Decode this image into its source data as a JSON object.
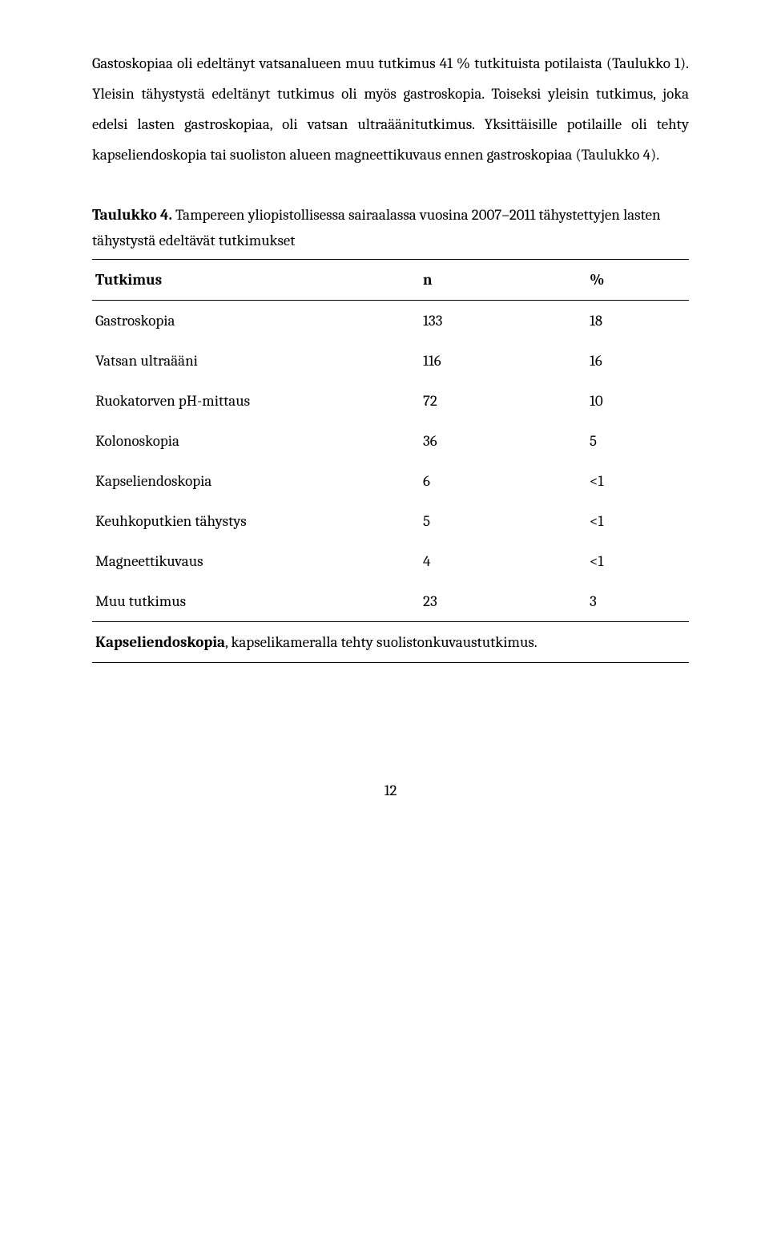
{
  "paragraph": {
    "text": "Gastoskopiaa oli edeltänyt vatsanalueen muu tutkimus 41 % tutkituista potilaista (Taulukko 1). Yleisin tähystystä edeltänyt tutkimus oli myös gastroskopia. Toiseksi yleisin tutkimus, joka edelsi lasten gastroskopiaa, oli vatsan ultraäänitutkimus. Yksittäisille potilaille oli tehty kapseliendoskopia tai suoliston alueen magneettikuvaus ennen gastroskopiaa (Taulukko 4)."
  },
  "table": {
    "caption_lead": "Taulukko 4.",
    "caption_rest": "Tampereen yliopistollisessa sairaalassa vuosina 2007–2011 tähystettyjen lasten tähystystä edeltävät tutkimukset",
    "head": {
      "c1": "Tutkimus",
      "c2": "n",
      "c3": "%"
    },
    "rows": [
      {
        "c1": "Gastroskopia",
        "c2": "133",
        "c3": "18"
      },
      {
        "c1": "Vatsan ultraääni",
        "c2": "116",
        "c3": "16"
      },
      {
        "c1": "Ruokatorven pH-mittaus",
        "c2": "72",
        "c3": "10"
      },
      {
        "c1": "Kolonoskopia",
        "c2": "36",
        "c3": "5"
      },
      {
        "c1": "Kapseliendoskopia",
        "c2": "6",
        "c3": "<1"
      },
      {
        "c1": "Keuhkoputkien tähystys",
        "c2": "5",
        "c3": "<1"
      },
      {
        "c1": "Magneettikuvaus",
        "c2": "4",
        "c3": "<1"
      },
      {
        "c1": "Muu tutkimus",
        "c2": "23",
        "c3": "3"
      }
    ],
    "footnote_lead": "Kapseliendoskopia",
    "footnote_rest": ", kapselikameralla tehty suolistonkuvaustutkimus."
  },
  "page_number": "12"
}
